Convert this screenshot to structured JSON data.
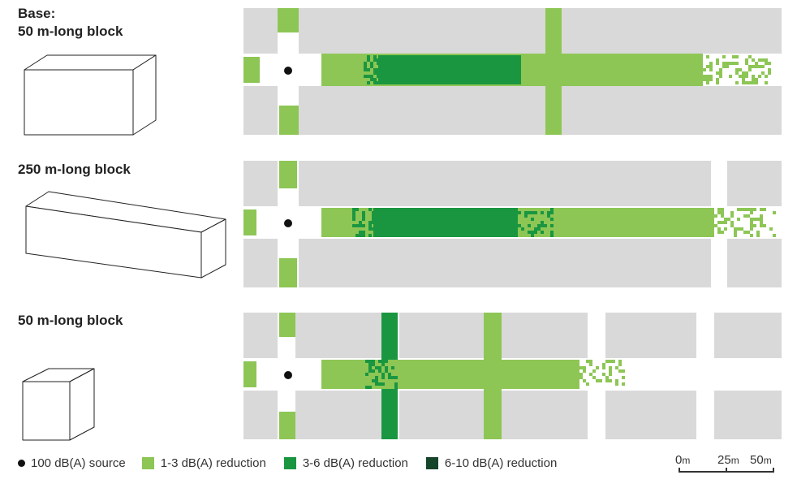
{
  "rows": [
    {
      "label_line1": "Base:",
      "label_line2": "50 m-long block",
      "block_shape": "medium"
    },
    {
      "label_line1": "250 m-long block",
      "label_line2": "",
      "block_shape": "long"
    },
    {
      "label_line1": "50 m-long block",
      "label_line2": "",
      "block_shape": "cube"
    }
  ],
  "legend": {
    "source": "100 dB(A) source",
    "reduction_1_3": "1-3 dB(A) reduction",
    "reduction_3_6": "3-6 dB(A) reduction",
    "reduction_6_10": "6-10 dB(A) reduction"
  },
  "scale": {
    "tick_0": "0",
    "tick_25": "25",
    "tick_50": "50",
    "unit": "m"
  },
  "colors": {
    "building": "#d9d9d9",
    "street": "#ffffff",
    "reduction_1_3": "#8dc655",
    "reduction_3_6": "#1a9641",
    "reduction_6_10": "#17452a",
    "source": "#111111"
  }
}
